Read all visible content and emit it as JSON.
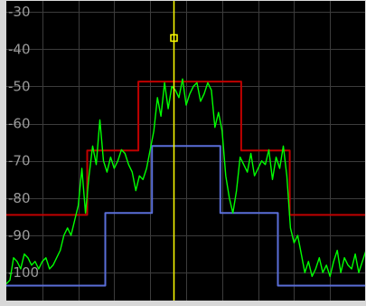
{
  "chart_data": {
    "type": "line",
    "title": "",
    "xlabel": "",
    "ylabel": "",
    "ylim": [
      -107.5,
      -26.8
    ],
    "xlim": [
      0,
      100
    ],
    "grid": true,
    "y_tick_labels": [
      "-30",
      "-40",
      "-50",
      "-60",
      "-70",
      "-80",
      "-90",
      "-100"
    ],
    "y_ticks": [
      -30,
      -40,
      -50,
      -60,
      -70,
      -80,
      -90,
      -100
    ],
    "x_grid_count": 10,
    "marker": {
      "x": 46.5,
      "y": -37
    },
    "colors": {
      "background": "#000000",
      "grid": "#3c3c3c",
      "frame": "#d8d8d8",
      "trace": "#00ff00",
      "limit_upper": "#c00000",
      "limit_lower": "#5a6ed8",
      "marker": "#ffff00",
      "tick_labels": "#9a9a9a"
    },
    "series": [
      {
        "role": "upper-limit-mask",
        "color": "#c00000",
        "x": [
          0,
          22.5,
          22.5,
          36.7,
          36.7,
          65.3,
          65.3,
          78.8,
          78.8,
          100
        ],
        "y": [
          -84.5,
          -84.5,
          -67.2,
          -67.2,
          -48.7,
          -48.7,
          -67.2,
          -67.2,
          -84.5,
          -84.5
        ]
      },
      {
        "role": "lower-limit-mask",
        "color": "#5a6ed8",
        "x": [
          0,
          27.5,
          27.5,
          40.5,
          40.5,
          59.5,
          59.5,
          75.5,
          75.5,
          100
        ],
        "y": [
          -103.5,
          -103.5,
          -84,
          -84,
          -66,
          -66,
          -84,
          -84,
          -103.5,
          -103.5
        ]
      },
      {
        "role": "measured-trace",
        "color": "#00ff00",
        "x": [
          0,
          1,
          2,
          3,
          4,
          5,
          6,
          7,
          8,
          9,
          10,
          11,
          12,
          13,
          14,
          15,
          16,
          17,
          18,
          19,
          20,
          21,
          22,
          23,
          24,
          25,
          26,
          27,
          28,
          29,
          30,
          31,
          32,
          33,
          34,
          35,
          36,
          37,
          38,
          39,
          40,
          41,
          42,
          43,
          44,
          45,
          46,
          47,
          48,
          49,
          50,
          51,
          52,
          53,
          54,
          55,
          56,
          57,
          58,
          59,
          60,
          61,
          62,
          63,
          64,
          65,
          66,
          67,
          68,
          69,
          70,
          71,
          72,
          73,
          74,
          75,
          76,
          77,
          78,
          79,
          80,
          81,
          82,
          83,
          84,
          85,
          86,
          87,
          88,
          89,
          90,
          91,
          92,
          93,
          94,
          95,
          96,
          97,
          98,
          99,
          100
        ],
        "y": [
          -103,
          -102,
          -96,
          -97,
          -99,
          -95,
          -96,
          -98,
          -97,
          -99,
          -97,
          -96,
          -99,
          -98,
          -96,
          -94,
          -90,
          -88,
          -90,
          -86,
          -82,
          -72,
          -84,
          -74,
          -66,
          -71,
          -59,
          -70,
          -73,
          -69,
          -72,
          -70,
          -67,
          -68,
          -71,
          -73,
          -78,
          -74,
          -75,
          -72,
          -67,
          -62,
          -53,
          -58,
          -49,
          -56,
          -50,
          -51,
          -53,
          -48,
          -55,
          -52,
          -50,
          -49,
          -54,
          -52,
          -49,
          -51,
          -61,
          -57,
          -62,
          -74,
          -80,
          -84,
          -78,
          -69,
          -71,
          -73,
          -68,
          -74,
          -72,
          -70,
          -71,
          -67,
          -75,
          -69,
          -72,
          -66,
          -74,
          -88,
          -92,
          -90,
          -95,
          -100,
          -97,
          -101,
          -99,
          -96,
          -100,
          -98,
          -101,
          -97,
          -94,
          -100,
          -96,
          -98,
          -99,
          -95,
          -100,
          -97,
          -94
        ]
      }
    ]
  }
}
